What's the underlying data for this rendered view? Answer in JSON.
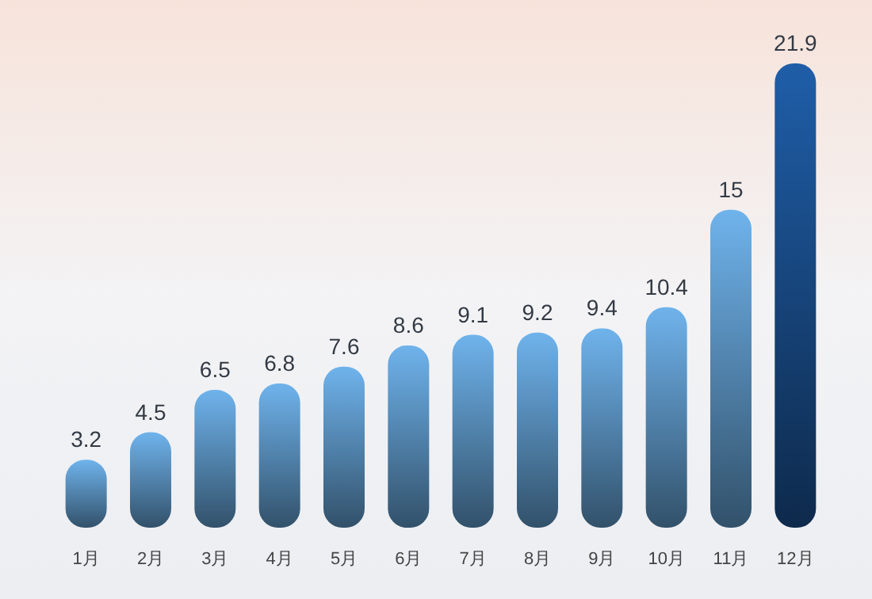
{
  "chart_data": {
    "type": "bar",
    "categories": [
      "1月",
      "2月",
      "3月",
      "4月",
      "5月",
      "6月",
      "7月",
      "8月",
      "9月",
      "10月",
      "11月",
      "12月"
    ],
    "values": [
      3.2,
      4.5,
      6.5,
      6.8,
      7.6,
      8.6,
      9.1,
      9.2,
      9.4,
      10.4,
      15,
      21.9
    ],
    "colors": [
      "#6fb3ec",
      "#6fb3ec",
      "#6fb3ec",
      "#6fb3ec",
      "#6fb3ec",
      "#6fb3ec",
      "#6fb3ec",
      "#6fb3ec",
      "#6fb3ec",
      "#6fb3ec",
      "#6fb3ec",
      "#1f5ea8"
    ],
    "data_labels": true
  }
}
